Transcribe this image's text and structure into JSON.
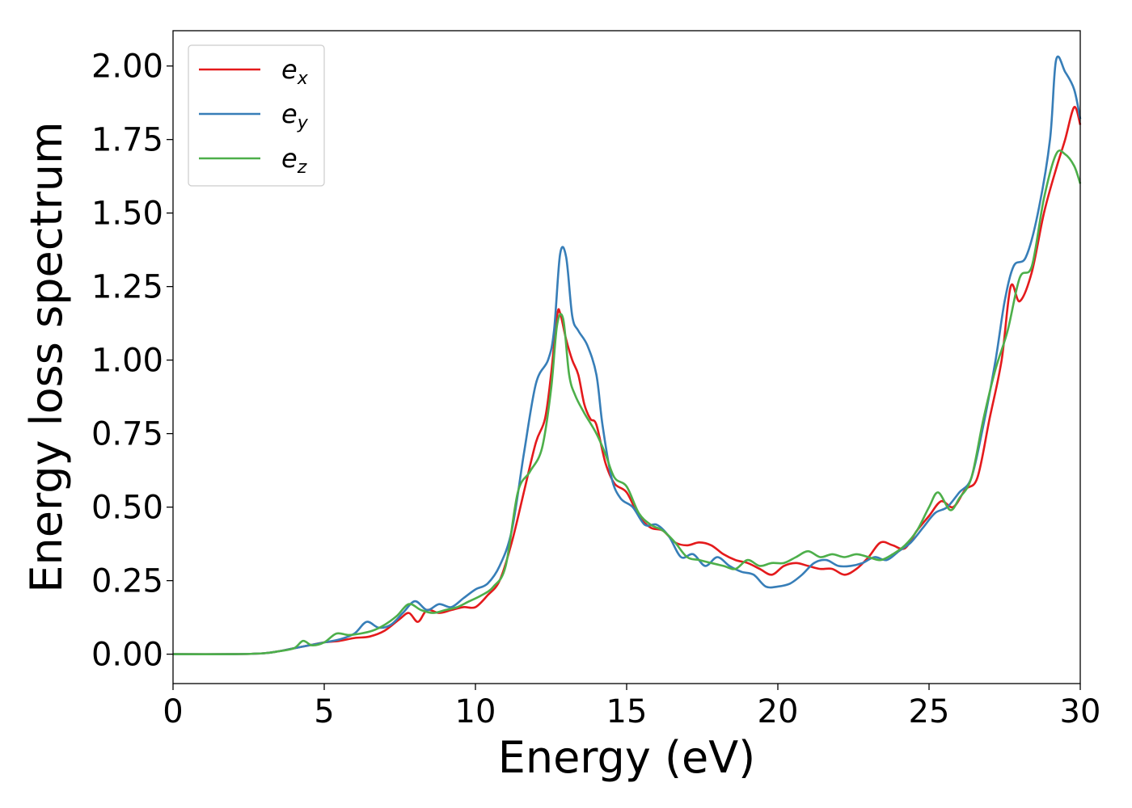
{
  "chart_data": {
    "type": "line",
    "title": "",
    "xlabel": "Energy (eV)",
    "ylabel": "Energy loss spectrum",
    "xlim": [
      0,
      30
    ],
    "ylim": [
      -0.1,
      2.12
    ],
    "xticks": [
      0,
      5,
      10,
      15,
      20,
      25,
      30
    ],
    "xtick_labels": [
      "0",
      "5",
      "10",
      "15",
      "20",
      "25",
      "30"
    ],
    "yticks": [
      0,
      0.25,
      0.5,
      0.75,
      1.0,
      1.25,
      1.5,
      1.75,
      2.0
    ],
    "ytick_labels": [
      "0.00",
      "0.25",
      "0.50",
      "0.75",
      "1.00",
      "1.25",
      "1.50",
      "1.75",
      "2.00"
    ],
    "grid": false,
    "legend_position": "top-left",
    "series": [
      {
        "name": "e",
        "subscript": "x",
        "color": "#e41a1c",
        "points": [
          [
            0,
            0
          ],
          [
            2,
            0
          ],
          [
            3,
            0.003
          ],
          [
            3.5,
            0.01
          ],
          [
            4,
            0.02
          ],
          [
            4.5,
            0.03
          ],
          [
            5,
            0.04
          ],
          [
            5.5,
            0.045
          ],
          [
            6,
            0.055
          ],
          [
            6.5,
            0.06
          ],
          [
            7,
            0.08
          ],
          [
            7.5,
            0.12
          ],
          [
            7.8,
            0.14
          ],
          [
            8.1,
            0.11
          ],
          [
            8.4,
            0.15
          ],
          [
            8.8,
            0.14
          ],
          [
            9.2,
            0.15
          ],
          [
            9.6,
            0.16
          ],
          [
            10,
            0.16
          ],
          [
            10.4,
            0.2
          ],
          [
            10.8,
            0.25
          ],
          [
            11.2,
            0.38
          ],
          [
            11.6,
            0.55
          ],
          [
            12,
            0.72
          ],
          [
            12.3,
            0.8
          ],
          [
            12.5,
            0.95
          ],
          [
            12.7,
            1.15
          ],
          [
            12.8,
            1.16
          ],
          [
            13,
            1.07
          ],
          [
            13.2,
            1.0
          ],
          [
            13.4,
            0.95
          ],
          [
            13.6,
            0.85
          ],
          [
            13.8,
            0.8
          ],
          [
            14,
            0.78
          ],
          [
            14.3,
            0.65
          ],
          [
            14.6,
            0.58
          ],
          [
            15,
            0.55
          ],
          [
            15.4,
            0.47
          ],
          [
            15.8,
            0.43
          ],
          [
            16.2,
            0.42
          ],
          [
            16.6,
            0.38
          ],
          [
            17,
            0.37
          ],
          [
            17.4,
            0.38
          ],
          [
            17.8,
            0.37
          ],
          [
            18.2,
            0.34
          ],
          [
            18.6,
            0.32
          ],
          [
            19,
            0.31
          ],
          [
            19.4,
            0.29
          ],
          [
            19.8,
            0.27
          ],
          [
            20.2,
            0.3
          ],
          [
            20.6,
            0.31
          ],
          [
            21,
            0.3
          ],
          [
            21.4,
            0.29
          ],
          [
            21.8,
            0.29
          ],
          [
            22.2,
            0.27
          ],
          [
            22.6,
            0.29
          ],
          [
            23,
            0.33
          ],
          [
            23.4,
            0.38
          ],
          [
            23.8,
            0.37
          ],
          [
            24.2,
            0.36
          ],
          [
            24.6,
            0.42
          ],
          [
            25,
            0.47
          ],
          [
            25.4,
            0.52
          ],
          [
            25.8,
            0.5
          ],
          [
            26.2,
            0.56
          ],
          [
            26.6,
            0.6
          ],
          [
            27,
            0.8
          ],
          [
            27.4,
            1.0
          ],
          [
            27.7,
            1.25
          ],
          [
            28,
            1.2
          ],
          [
            28.4,
            1.3
          ],
          [
            28.8,
            1.5
          ],
          [
            29.2,
            1.65
          ],
          [
            29.5,
            1.75
          ],
          [
            29.8,
            1.86
          ],
          [
            30,
            1.8
          ]
        ]
      },
      {
        "name": "e",
        "subscript": "y",
        "color": "#377eb8",
        "points": [
          [
            0,
            0
          ],
          [
            2,
            0
          ],
          [
            3,
            0.003
          ],
          [
            3.5,
            0.01
          ],
          [
            4,
            0.02
          ],
          [
            4.5,
            0.03
          ],
          [
            5,
            0.04
          ],
          [
            5.5,
            0.05
          ],
          [
            6,
            0.07
          ],
          [
            6.4,
            0.11
          ],
          [
            6.8,
            0.09
          ],
          [
            7.2,
            0.1
          ],
          [
            7.6,
            0.14
          ],
          [
            8,
            0.18
          ],
          [
            8.4,
            0.15
          ],
          [
            8.8,
            0.17
          ],
          [
            9.2,
            0.16
          ],
          [
            9.6,
            0.19
          ],
          [
            10,
            0.22
          ],
          [
            10.4,
            0.24
          ],
          [
            10.8,
            0.3
          ],
          [
            11.2,
            0.42
          ],
          [
            11.6,
            0.68
          ],
          [
            12,
            0.92
          ],
          [
            12.4,
            1.0
          ],
          [
            12.6,
            1.1
          ],
          [
            12.8,
            1.36
          ],
          [
            13,
            1.35
          ],
          [
            13.2,
            1.15
          ],
          [
            13.4,
            1.1
          ],
          [
            13.7,
            1.05
          ],
          [
            14,
            0.95
          ],
          [
            14.2,
            0.78
          ],
          [
            14.5,
            0.6
          ],
          [
            14.8,
            0.53
          ],
          [
            15.2,
            0.5
          ],
          [
            15.6,
            0.44
          ],
          [
            16,
            0.44
          ],
          [
            16.4,
            0.4
          ],
          [
            16.8,
            0.33
          ],
          [
            17.2,
            0.34
          ],
          [
            17.6,
            0.3
          ],
          [
            18,
            0.33
          ],
          [
            18.4,
            0.3
          ],
          [
            18.8,
            0.28
          ],
          [
            19.2,
            0.27
          ],
          [
            19.6,
            0.23
          ],
          [
            20,
            0.23
          ],
          [
            20.4,
            0.24
          ],
          [
            20.8,
            0.27
          ],
          [
            21.2,
            0.31
          ],
          [
            21.6,
            0.32
          ],
          [
            22,
            0.3
          ],
          [
            22.4,
            0.3
          ],
          [
            22.8,
            0.31
          ],
          [
            23.2,
            0.33
          ],
          [
            23.6,
            0.32
          ],
          [
            24,
            0.35
          ],
          [
            24.4,
            0.38
          ],
          [
            24.8,
            0.43
          ],
          [
            25.2,
            0.48
          ],
          [
            25.6,
            0.5
          ],
          [
            26,
            0.55
          ],
          [
            26.4,
            0.6
          ],
          [
            26.8,
            0.78
          ],
          [
            27.2,
            1.0
          ],
          [
            27.5,
            1.2
          ],
          [
            27.8,
            1.32
          ],
          [
            28.2,
            1.35
          ],
          [
            28.6,
            1.5
          ],
          [
            29,
            1.75
          ],
          [
            29.2,
            2.02
          ],
          [
            29.5,
            1.98
          ],
          [
            29.8,
            1.92
          ],
          [
            30,
            1.82
          ]
        ]
      },
      {
        "name": "e",
        "subscript": "z",
        "color": "#4daf4a",
        "points": [
          [
            0,
            0
          ],
          [
            2,
            0
          ],
          [
            3,
            0.003
          ],
          [
            3.5,
            0.01
          ],
          [
            4,
            0.02
          ],
          [
            4.3,
            0.045
          ],
          [
            4.6,
            0.03
          ],
          [
            5,
            0.04
          ],
          [
            5.4,
            0.07
          ],
          [
            5.8,
            0.065
          ],
          [
            6.2,
            0.07
          ],
          [
            6.6,
            0.08
          ],
          [
            7,
            0.1
          ],
          [
            7.4,
            0.13
          ],
          [
            7.8,
            0.17
          ],
          [
            8.2,
            0.15
          ],
          [
            8.6,
            0.14
          ],
          [
            9,
            0.15
          ],
          [
            9.4,
            0.16
          ],
          [
            9.8,
            0.18
          ],
          [
            10.2,
            0.2
          ],
          [
            10.6,
            0.23
          ],
          [
            11,
            0.3
          ],
          [
            11.4,
            0.55
          ],
          [
            11.8,
            0.62
          ],
          [
            12.2,
            0.7
          ],
          [
            12.5,
            0.9
          ],
          [
            12.7,
            1.12
          ],
          [
            12.9,
            1.14
          ],
          [
            13.1,
            0.95
          ],
          [
            13.3,
            0.88
          ],
          [
            13.6,
            0.82
          ],
          [
            14,
            0.75
          ],
          [
            14.3,
            0.68
          ],
          [
            14.6,
            0.6
          ],
          [
            15,
            0.57
          ],
          [
            15.4,
            0.48
          ],
          [
            15.8,
            0.44
          ],
          [
            16.2,
            0.42
          ],
          [
            16.6,
            0.38
          ],
          [
            17,
            0.33
          ],
          [
            17.4,
            0.32
          ],
          [
            17.8,
            0.31
          ],
          [
            18.2,
            0.3
          ],
          [
            18.6,
            0.29
          ],
          [
            19,
            0.32
          ],
          [
            19.4,
            0.3
          ],
          [
            19.8,
            0.31
          ],
          [
            20.2,
            0.31
          ],
          [
            20.6,
            0.33
          ],
          [
            21,
            0.35
          ],
          [
            21.4,
            0.33
          ],
          [
            21.8,
            0.34
          ],
          [
            22.2,
            0.33
          ],
          [
            22.6,
            0.34
          ],
          [
            23,
            0.33
          ],
          [
            23.4,
            0.32
          ],
          [
            23.8,
            0.34
          ],
          [
            24.2,
            0.37
          ],
          [
            24.6,
            0.42
          ],
          [
            25,
            0.5
          ],
          [
            25.3,
            0.55
          ],
          [
            25.7,
            0.49
          ],
          [
            26,
            0.53
          ],
          [
            26.4,
            0.6
          ],
          [
            26.8,
            0.8
          ],
          [
            27.2,
            0.97
          ],
          [
            27.6,
            1.1
          ],
          [
            28,
            1.28
          ],
          [
            28.4,
            1.32
          ],
          [
            28.8,
            1.55
          ],
          [
            29.2,
            1.7
          ],
          [
            29.5,
            1.7
          ],
          [
            29.8,
            1.66
          ],
          [
            30,
            1.6
          ]
        ]
      }
    ]
  }
}
